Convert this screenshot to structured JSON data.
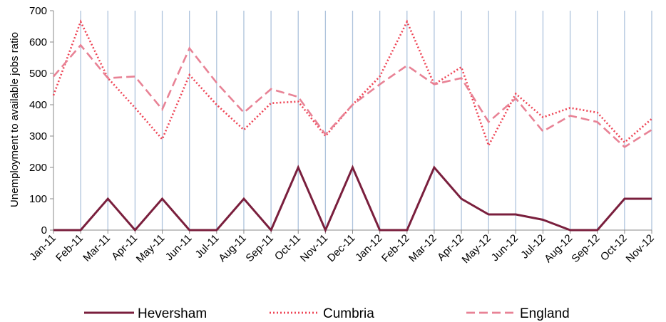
{
  "chart_data": {
    "type": "line",
    "ylabel": "Unemployment to available jobs ratio",
    "xlabel": "",
    "ylim": [
      0,
      700
    ],
    "yticks": [
      0,
      100,
      200,
      300,
      400,
      500,
      600,
      700
    ],
    "grid": "vertical",
    "legend_position": "bottom",
    "categories": [
      "Jan-11",
      "Feb-11",
      "Mar-11",
      "Apr-11",
      "May-11",
      "Jun-11",
      "Jul-11",
      "Aug-11",
      "Sep-11",
      "Oct-11",
      "Nov-11",
      "Dec-11",
      "Jan-12",
      "Feb-12",
      "Mar-12",
      "Apr-12",
      "May-12",
      "Jun-12",
      "Jul-12",
      "Aug-12",
      "Sep-12",
      "Oct-12",
      "Nov-12"
    ],
    "series": [
      {
        "name": "Heversham",
        "style": "solid",
        "color": "#7a1f3d",
        "values": [
          0,
          0,
          100,
          0,
          100,
          0,
          0,
          100,
          0,
          200,
          0,
          200,
          0,
          0,
          200,
          100,
          50,
          50,
          33,
          0,
          0,
          100,
          100
        ]
      },
      {
        "name": "Cumbria",
        "style": "dotted",
        "color": "#ee4455",
        "values": [
          430,
          665,
          485,
          390,
          290,
          495,
          400,
          320,
          405,
          410,
          300,
          400,
          490,
          665,
          465,
          520,
          270,
          435,
          360,
          390,
          375,
          280,
          355
        ]
      },
      {
        "name": "England",
        "style": "dashed",
        "color": "#e88295",
        "values": [
          490,
          590,
          485,
          490,
          385,
          580,
          470,
          375,
          450,
          425,
          305,
          400,
          465,
          525,
          465,
          485,
          345,
          420,
          315,
          365,
          345,
          265,
          320
        ]
      }
    ]
  }
}
